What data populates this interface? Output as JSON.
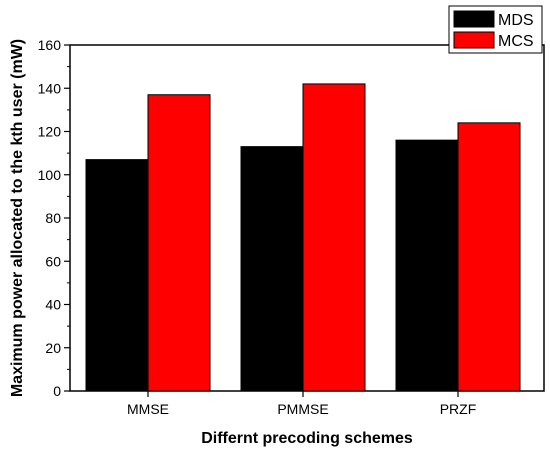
{
  "chart_data": {
    "type": "bar",
    "categories": [
      "MMSE",
      "PMMSE",
      "PRZF"
    ],
    "series": [
      {
        "name": "MDS",
        "values": [
          107,
          113,
          116
        ],
        "color": "#000000"
      },
      {
        "name": "MCS",
        "values": [
          137,
          142,
          124
        ],
        "color": "#ff0000"
      }
    ],
    "title": "",
    "xlabel": "Differnt precoding schemes",
    "ylabel": "Maximum power allocated to the kth user (mW)",
    "ylim": [
      0,
      160
    ],
    "yticks": [
      0,
      20,
      40,
      60,
      80,
      100,
      120,
      140,
      160
    ],
    "grid": false,
    "legend_position": "top-right"
  }
}
